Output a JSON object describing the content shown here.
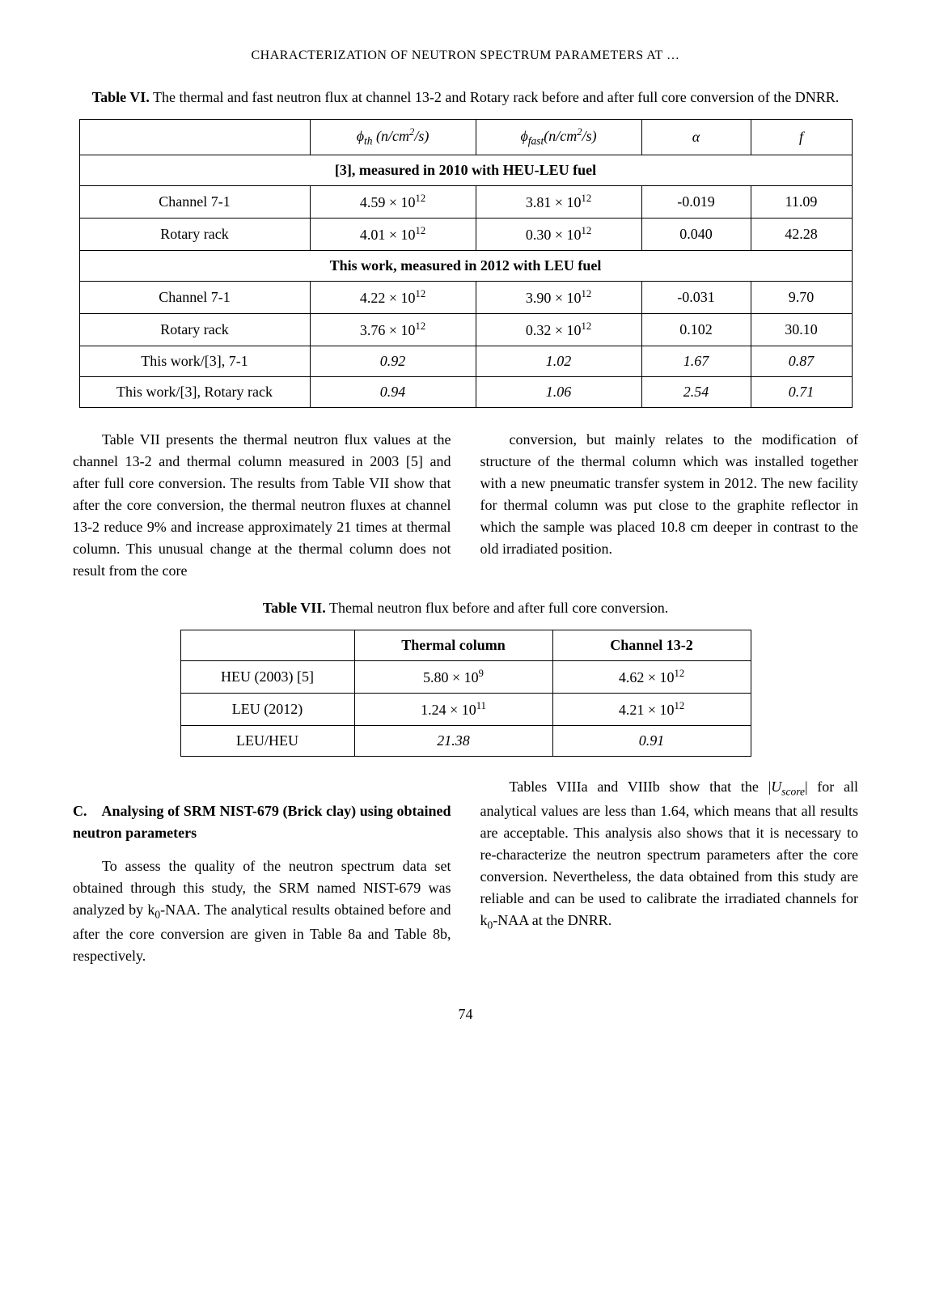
{
  "runningHead": "CHARACTERIZATION OF NEUTRON SPECTRUM PARAMETERS AT …",
  "table6": {
    "captionLabel": "Table VI.",
    "caption": "The thermal and fast neutron flux at channel 13-2 and Rotary rack before and after full core conversion of the DNRR.",
    "h_phi_th_html": "<i>ϕ<sub>th</sub> (n/cm<sup>2</sup>/s)</i>",
    "h_phi_fast_html": "<i>ϕ<sub>fast</sub>(n/cm<sup>2</sup>/s)</i>",
    "h_alpha": "α",
    "h_f": "f",
    "sec1": "[3], measured in 2010 with HEU-LEU fuel",
    "r1_label": "Channel 7-1",
    "r1_th_html": "4.59 × 10<sup>12</sup>",
    "r1_fast_html": "3.81 × 10<sup>12</sup>",
    "r1_a": "-0.019",
    "r1_f": "11.09",
    "r2_label": "Rotary rack",
    "r2_th_html": "4.01 × 10<sup>12</sup>",
    "r2_fast_html": "0.30 × 10<sup>12</sup>",
    "r2_a": "0.040",
    "r2_f": "42.28",
    "sec2": "This work, measured in 2012 with LEU fuel",
    "r3_label": "Channel 7-1",
    "r3_th_html": "4.22 × 10<sup>12</sup>",
    "r3_fast_html": "3.90 × 10<sup>12</sup>",
    "r3_a": "-0.031",
    "r3_f": "9.70",
    "r4_label": "Rotary rack",
    "r4_th_html": "3.76 × 10<sup>12</sup>",
    "r4_fast_html": "0.32 × 10<sup>12</sup>",
    "r4_a": "0.102",
    "r4_f": "30.10",
    "r5_label": "This work/[3], 7-1",
    "r5_th": "0.92",
    "r5_fast": "1.02",
    "r5_a": "1.67",
    "r5_f": "0.87",
    "r6_label": "This work/[3], Rotary rack",
    "r6_th": "0.94",
    "r6_fast": "1.06",
    "r6_a": "2.54",
    "r6_f": "0.71"
  },
  "para1_left": "Table VII presents the thermal neutron flux values at the channel 13-2 and thermal column measured in 2003 [5] and after full core conversion. The results from Table VII show that after the core conversion, the thermal neutron fluxes at channel 13-2 reduce 9% and increase approximately 21 times at thermal column. This unusual change at the thermal column does not result from the core",
  "para1_right": "conversion, but mainly relates to the modification of structure of the thermal column which was installed together with a new pneumatic transfer system in 2012. The new facility for thermal column was put close to the graphite reflector in which the sample was placed 10.8 cm deeper in contrast to the old irradiated position.",
  "table7": {
    "captionLabel": "Table VII.",
    "caption": "Themal neutron flux before and after full core conversion.",
    "h_col2": "Thermal column",
    "h_col3": "Channel 13-2",
    "r1_label": "HEU (2003) [5]",
    "r1_c2_html": "5.80 × 10<sup>9</sup>",
    "r1_c3_html": "4.62 × 10<sup>12</sup>",
    "r2_label": "LEU (2012)",
    "r2_c2_html": "1.24 × 10<sup>11</sup>",
    "r2_c3_html": "4.21 × 10<sup>12</sup>",
    "r3_label": "LEU/HEU",
    "r3_c2": "21.38",
    "r3_c3": "0.91"
  },
  "sectionC": {
    "letter": "C.",
    "title": "Analysing of SRM NIST-679 (Brick clay) using obtained neutron parameters"
  },
  "para2_left_html": "To assess the quality of the neutron spectrum data set obtained through this study, the SRM named NIST-679 was analyzed by k<sub>0</sub>-NAA. The analytical results obtained before and after the core conversion are given in Table 8a and Table 8b, respectively.",
  "para2_right_html": "Tables VIIIa and VIIIb show that the |<i>U<sub>score</sub></i>| for all analytical values are less than 1.64, which means that all results are acceptable. This analysis also shows that it is necessary to re-characterize the neutron spectrum parameters after the core conversion. Nevertheless, the data obtained from this study are reliable and can be used to calibrate the irradiated channels for k<sub>0</sub>-NAA at the DNRR.",
  "pageNumber": "74"
}
